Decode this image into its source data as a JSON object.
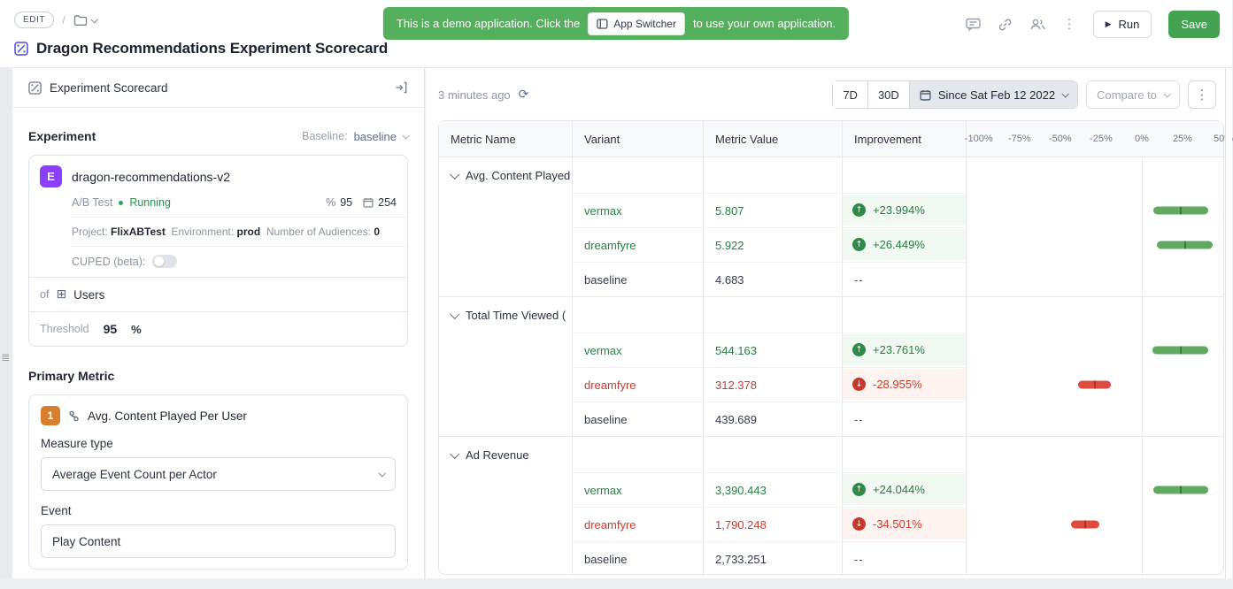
{
  "colors": {
    "banner_green": "#55b05e",
    "save_green": "#44a350",
    "experiment_purple": "#8a3ffc",
    "metric_orange": "#d87f2f",
    "app_indigo": "#4a4adf",
    "positive_green": "#2a8045",
    "negative_red": "#ce3a2c"
  },
  "header": {
    "edit_badge": "EDIT",
    "breadcrumb_sep": "/",
    "banner": {
      "text_before": "This is a demo application. Click the",
      "chip": "App Switcher",
      "text_after": "to use your own application."
    },
    "run_label": "Run",
    "save_label": "Save",
    "title": "Dragon Recommendations Experiment Scorecard"
  },
  "left_panel": {
    "title": "Experiment Scorecard",
    "experiment_section": {
      "heading": "Experiment",
      "baseline_label": "Baseline:",
      "baseline_value": "baseline",
      "card": {
        "badge": "E",
        "name": "dragon-recommendations-v2",
        "type": "A/B Test",
        "status": "Running",
        "allocation_icon": "%",
        "allocation": "95",
        "days": "254",
        "project_label": "Project:",
        "project": "FlixABTest",
        "environment_label": "Environment:",
        "environment": "prod",
        "audiences_label": "Number of Audiences:",
        "audiences": "0",
        "cuped_label": "CUPED (beta):",
        "of_label": "of",
        "entity": "Users",
        "entity_icon": "⊞",
        "threshold_label": "Threshold",
        "threshold_value": "95",
        "threshold_unit": "%"
      }
    },
    "primary_metric_section": {
      "heading": "Primary Metric",
      "badge": "1",
      "metric_name": "Avg. Content Played Per User",
      "measure_type_label": "Measure type",
      "measure_type_value": "Average Event Count per Actor",
      "event_label": "Event",
      "event_value": "Play Content"
    }
  },
  "toolbar": {
    "last_run": "3 minutes ago",
    "refresh_icon": "⟳",
    "range_7d": "7D",
    "range_30d": "30D",
    "date_range": "Since Sat Feb 12 2022",
    "compare_label": "Compare to"
  },
  "chart_data": {
    "type": "table",
    "columns": [
      "Metric Name",
      "Variant",
      "Metric Value",
      "Improvement"
    ],
    "axis": {
      "min": -107.5,
      "max": 50,
      "unit": "%",
      "ticks": [
        {
          "v": -100,
          "label": "-100%"
        },
        {
          "v": -75,
          "label": "-75%"
        },
        {
          "v": -50,
          "label": "-50%"
        },
        {
          "v": -25,
          "label": "-25%"
        },
        {
          "v": 0,
          "label": "0%"
        },
        {
          "v": 25,
          "label": "25%"
        },
        {
          "v": 50,
          "label": "50%"
        }
      ]
    },
    "groups": [
      {
        "name": "Avg. Content Played",
        "rows": [
          {
            "variant": "vermax",
            "value": "5.807",
            "improvement": "+23.994%",
            "direction": "up",
            "mid": 23.994,
            "ci": [
              7.0,
              41.0
            ]
          },
          {
            "variant": "dreamfyre",
            "value": "5.922",
            "improvement": "+26.449%",
            "direction": "up",
            "mid": 26.449,
            "ci": [
              9.4,
              43.4
            ]
          },
          {
            "variant": "baseline",
            "value": "4.683",
            "improvement": "--",
            "direction": "none"
          }
        ]
      },
      {
        "name": "Total Time Viewed (",
        "rows": [
          {
            "variant": "vermax",
            "value": "544.163",
            "improvement": "+23.761%",
            "direction": "up",
            "mid": 23.761,
            "ci": [
              6.8,
              40.7
            ]
          },
          {
            "variant": "dreamfyre",
            "value": "312.378",
            "improvement": "-28.955%",
            "direction": "down",
            "mid": -28.955,
            "ci": [
              -39.0,
              -19.0
            ]
          },
          {
            "variant": "baseline",
            "value": "439.689",
            "improvement": "--",
            "direction": "none"
          }
        ]
      },
      {
        "name": "Ad Revenue",
        "rows": [
          {
            "variant": "vermax",
            "value": "3,390.443",
            "improvement": "+24.044%",
            "direction": "up",
            "mid": 24.044,
            "ci": [
              7.0,
              41.0
            ]
          },
          {
            "variant": "dreamfyre",
            "value": "1,790.248",
            "improvement": "-34.501%",
            "direction": "down",
            "mid": -34.501,
            "ci": [
              -43.2,
              -25.8
            ]
          },
          {
            "variant": "baseline",
            "value": "2,733.251",
            "improvement": "--",
            "direction": "none"
          }
        ]
      }
    ]
  }
}
